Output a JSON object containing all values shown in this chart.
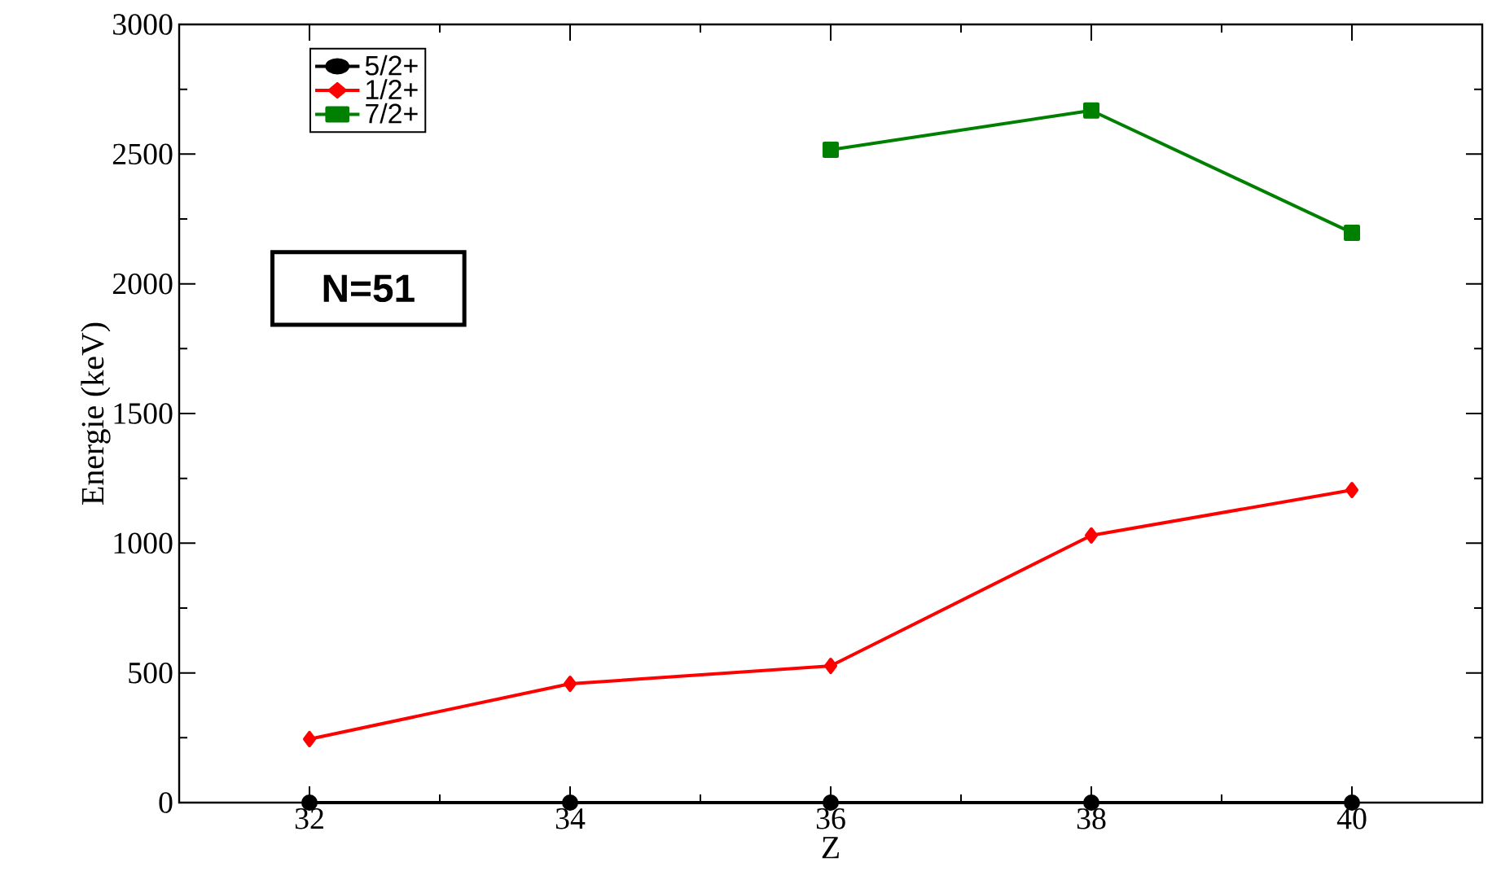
{
  "chart_data": {
    "type": "line",
    "xlabel": "Z",
    "ylabel": "Energie (keV)",
    "x": [
      32,
      34,
      36,
      38,
      40
    ],
    "series": [
      {
        "name": "5/2+",
        "color": "#000000",
        "marker": "circle",
        "values": [
          0,
          0,
          0,
          0,
          0
        ]
      },
      {
        "name": "1/2+",
        "color": "#ff0000",
        "marker": "diamond",
        "values": [
          245,
          458,
          527,
          1030,
          1205
        ]
      },
      {
        "name": "7/2+",
        "color": "#008000",
        "marker": "square",
        "values": [
          null,
          null,
          2517,
          2668,
          2197
        ]
      }
    ],
    "xlim": [
      31,
      41
    ],
    "ylim": [
      0,
      3000
    ],
    "xticks": [
      32,
      34,
      36,
      38,
      40
    ],
    "yticks": [
      0,
      500,
      1000,
      1500,
      2000,
      2500,
      3000
    ],
    "legend": "top left",
    "line_style": "solid",
    "grid": false,
    "annotations": [
      "N=51"
    ]
  }
}
